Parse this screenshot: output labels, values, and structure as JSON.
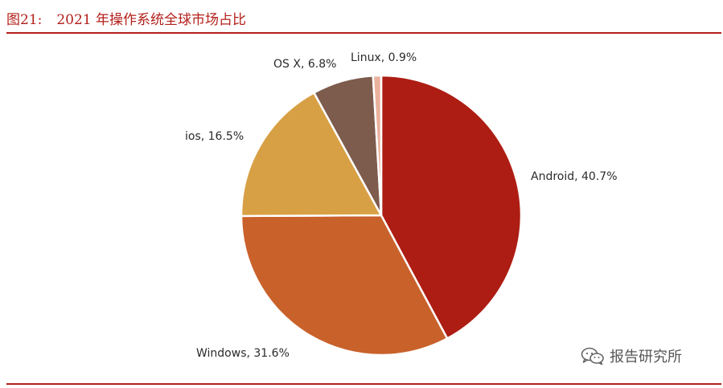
{
  "header": {
    "figure_no": "图21:",
    "title": "2021 年操作系统全球市场占比"
  },
  "chart_data": {
    "type": "pie",
    "title": "2021 年操作系统全球市场占比",
    "slices": [
      {
        "name": "Android",
        "value": 40.7,
        "label": "Android, 40.7%",
        "color": "#ad1d13"
      },
      {
        "name": "Windows",
        "value": 31.6,
        "label": "Windows, 31.6%",
        "color": "#c9612b"
      },
      {
        "name": "ios",
        "value": 16.5,
        "label": "ios, 16.5%",
        "color": "#d8a045"
      },
      {
        "name": "OS X",
        "value": 6.8,
        "label": "OS X, 6.8%",
        "color": "#7d5b4d"
      },
      {
        "name": "Linux",
        "value": 0.9,
        "label": "Linux, 0.9%",
        "color": "#eab19c"
      }
    ],
    "start_angle_deg": 0,
    "direction": "clockwise"
  },
  "watermark": {
    "icon": "wechat-icon",
    "text": "报告研究所"
  },
  "colors": {
    "accent": "#b3201b"
  }
}
